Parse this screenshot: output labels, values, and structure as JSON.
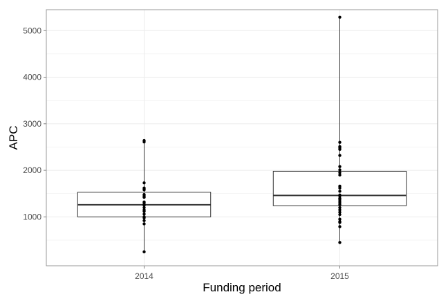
{
  "chart_data": {
    "type": "box",
    "xlabel": "Funding period",
    "ylabel": "APC",
    "ylim": [
      -50,
      5450
    ],
    "yticks": [
      1000,
      2000,
      3000,
      4000,
      5000
    ],
    "grid": true,
    "categories": [
      "2014",
      "2015"
    ],
    "boxes": [
      {
        "category": "2014",
        "q1": 1000,
        "median": 1260,
        "q3": 1530,
        "whisker_low": 250,
        "whisker_high": 2640
      },
      {
        "category": "2015",
        "q1": 1240,
        "median": 1460,
        "q3": 1980,
        "whisker_low": 450,
        "whisker_high": 5290
      }
    ],
    "points": [
      {
        "category": "2014",
        "values": [
          250,
          850,
          920,
          980,
          1000,
          1060,
          1120,
          1150,
          1200,
          1250,
          1260,
          1300,
          1320,
          1420,
          1450,
          1480,
          1580,
          1600,
          1620,
          1730,
          2610,
          2640
        ]
      },
      {
        "category": "2015",
        "values": [
          450,
          790,
          880,
          900,
          950,
          1050,
          1100,
          1150,
          1200,
          1260,
          1300,
          1340,
          1380,
          1400,
          1450,
          1470,
          1550,
          1620,
          1660,
          1900,
          1950,
          2010,
          2080,
          2320,
          2450,
          2480,
          2510,
          2600,
          5290
        ]
      }
    ]
  },
  "colors": {
    "panel_border": "#999999",
    "grid": "#ebebeb",
    "box_stroke": "#333333",
    "point": "#000000"
  }
}
